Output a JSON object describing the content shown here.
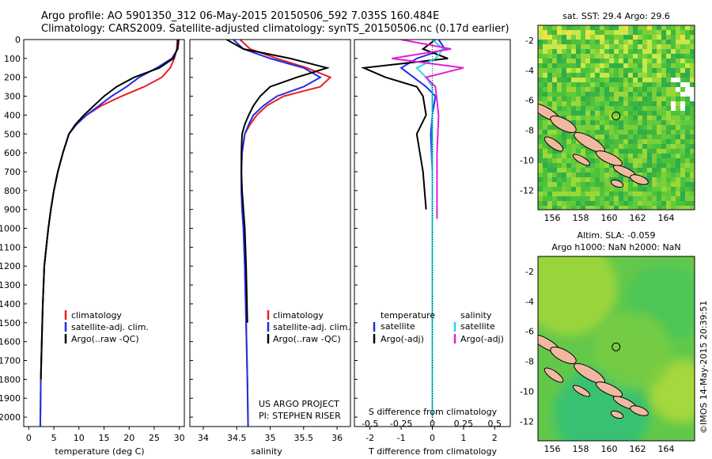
{
  "header": {
    "title_line1": "Argo profile: AO 5901350_312 06-May-2015 20150506_592 7.035S 160.484E",
    "title_line2": "Climatology: CARS2009. Satellite-adjusted climatology: synTS_20150506.nc (0.17d earlier)"
  },
  "colors": {
    "climatology": "#e8201f",
    "satellite": "#1f2fe0",
    "argo": "#000000",
    "salinity_satellite": "#22d8e6",
    "salinity_argo": "#e020d8"
  },
  "chart_data": [
    {
      "type": "line",
      "panel": "temperature",
      "xlabel": "temperature (deg C)",
      "xlim": [
        -1,
        31
      ],
      "xticks": [
        0,
        5,
        10,
        15,
        20,
        25,
        30
      ],
      "ylim": [
        2050,
        0
      ],
      "yticks": [
        0,
        100,
        200,
        300,
        400,
        500,
        600,
        700,
        800,
        900,
        1000,
        1100,
        1200,
        1300,
        1400,
        1500,
        1600,
        1700,
        1800,
        1900,
        2000
      ],
      "series": [
        {
          "name": "climatology",
          "x": [
            29.6,
            29.5,
            29.0,
            28.2,
            26.5,
            23.0,
            18.5,
            14.5,
            11.5,
            9.5,
            8.0,
            6.8,
            5.8,
            5.0,
            4.4,
            3.9,
            3.5,
            3.1,
            2.8,
            2.6,
            2.4,
            2.3
          ],
          "y": [
            0,
            50,
            100,
            150,
            200,
            250,
            300,
            350,
            400,
            450,
            500,
            600,
            700,
            800,
            900,
            1000,
            1100,
            1200,
            1400,
            1600,
            1800,
            2050
          ]
        },
        {
          "name": "satellite-adj. clim.",
          "x": [
            29.9,
            29.7,
            28.5,
            25.5,
            22.0,
            19.5,
            16.5,
            14.0,
            11.5,
            9.5,
            8.0,
            6.8,
            5.8,
            5.0,
            4.4,
            3.9,
            3.5,
            3.1,
            2.8,
            2.6,
            2.4,
            2.3
          ],
          "y": [
            0,
            50,
            100,
            150,
            200,
            250,
            300,
            350,
            400,
            450,
            500,
            600,
            700,
            800,
            900,
            1000,
            1100,
            1200,
            1400,
            1600,
            1800,
            2050
          ]
        },
        {
          "name": "Argo(..raw -QC)",
          "x": [
            29.8,
            29.6,
            28.8,
            26.0,
            21.0,
            17.5,
            15.0,
            13.0,
            11.0,
            9.3,
            8.0,
            6.8,
            5.8,
            5.0,
            4.4,
            3.9,
            3.5,
            3.1,
            2.8,
            2.6,
            2.4
          ],
          "y": [
            0,
            50,
            100,
            150,
            200,
            250,
            300,
            350,
            400,
            450,
            500,
            600,
            700,
            800,
            900,
            1000,
            1100,
            1200,
            1400,
            1600,
            1800
          ]
        }
      ],
      "legend": [
        "climatology",
        "satellite-adj. clim.",
        "Argo(..raw -QC)"
      ]
    },
    {
      "type": "line",
      "panel": "salinity",
      "xlabel": "salinity",
      "xlim": [
        33.8,
        36.2
      ],
      "xticks": [
        34,
        34.5,
        35,
        35.5,
        36
      ],
      "ylim": [
        2050,
        0
      ],
      "series": [
        {
          "name": "climatology",
          "x": [
            34.55,
            34.7,
            35.1,
            35.55,
            35.9,
            35.75,
            35.2,
            34.95,
            34.8,
            34.7,
            34.62,
            34.58,
            34.57,
            34.57,
            34.58,
            34.6,
            34.62,
            34.64,
            34.66,
            34.67
          ],
          "y": [
            0,
            50,
            100,
            150,
            200,
            250,
            300,
            350,
            400,
            450,
            500,
            600,
            700,
            800,
            900,
            1000,
            1200,
            1500,
            1800,
            2050
          ]
        },
        {
          "name": "satellite-adj. clim.",
          "x": [
            34.45,
            34.6,
            35.0,
            35.5,
            35.75,
            35.5,
            35.1,
            34.9,
            34.75,
            34.68,
            34.62,
            34.58,
            34.57,
            34.57,
            34.58,
            34.6,
            34.62,
            34.64,
            34.66,
            34.67
          ],
          "y": [
            0,
            50,
            100,
            150,
            200,
            250,
            300,
            350,
            400,
            450,
            500,
            600,
            700,
            800,
            900,
            1000,
            1200,
            1500,
            1800,
            2050
          ]
        },
        {
          "name": "Argo(..raw -QC)",
          "x": [
            34.35,
            34.6,
            35.3,
            35.85,
            35.4,
            35.0,
            34.85,
            34.75,
            34.68,
            34.62,
            34.58,
            34.57,
            34.57,
            34.58,
            34.6,
            34.62,
            34.64,
            34.66
          ],
          "y": [
            0,
            50,
            100,
            150,
            200,
            250,
            300,
            350,
            400,
            450,
            500,
            600,
            700,
            800,
            900,
            1000,
            1200,
            1500
          ]
        }
      ],
      "legend": [
        "climatology",
        "satellite-adj. clim.",
        "Argo(..raw -QC)"
      ],
      "annotations": [
        "US ARGO PROJECT",
        "PI: STEPHEN RISER"
      ]
    },
    {
      "type": "line",
      "panel": "difference",
      "xlabel": "T difference from climatology",
      "top_axis_label": "S difference from climatology",
      "xlim": [
        -2.5,
        2.5
      ],
      "xticks": [
        -2,
        -1,
        0,
        1,
        2
      ],
      "top_xticks": [
        -0.5,
        -0.25,
        0,
        0.25,
        0.5
      ],
      "ylim": [
        2050,
        0
      ],
      "series": [
        {
          "name": "temperature satellite",
          "x": [
            0.2,
            0.4,
            -0.5,
            -1.0,
            -0.6,
            -0.2,
            0.1,
            0.0,
            -0.05,
            0.0,
            0.0,
            0.0
          ],
          "y": [
            0,
            50,
            100,
            150,
            200,
            250,
            300,
            400,
            500,
            700,
            1000,
            2000
          ]
        },
        {
          "name": "temperature Argo(-adj)",
          "x": [
            0.1,
            -0.3,
            0.5,
            -2.2,
            -1.5,
            -0.5,
            -0.3,
            -0.2,
            -0.5,
            -0.3,
            -0.2
          ],
          "y": [
            0,
            50,
            100,
            150,
            200,
            250,
            300,
            400,
            500,
            700,
            900
          ]
        },
        {
          "name": "salinity satellite",
          "x": [
            0.0,
            0.35,
            0.1,
            -0.5,
            -0.2,
            0.0,
            0.0,
            0.0,
            0.0,
            0.0,
            0.0
          ],
          "y": [
            0,
            50,
            100,
            150,
            200,
            250,
            300,
            500,
            800,
            1200,
            2000
          ]
        },
        {
          "name": "salinity Argo(-adj)",
          "x": [
            -1.0,
            0.6,
            -1.3,
            1.0,
            -0.2,
            0.1,
            0.2,
            0.15,
            0.15,
            0.15
          ],
          "y": [
            0,
            50,
            100,
            150,
            200,
            250,
            400,
            600,
            800,
            950
          ]
        }
      ],
      "legend_temperature": {
        "title": "temperature",
        "items": [
          "satellite",
          "Argo(-adj)"
        ]
      },
      "legend_salinity": {
        "title": "salinity",
        "items": [
          "satellite",
          "Argo(-adj)"
        ]
      }
    },
    {
      "type": "heatmap",
      "panel": "sst_map",
      "title": "sat. SST: 29.4  Argo: 29.6",
      "xticks": [
        156,
        158,
        160,
        162,
        164
      ],
      "yticks": [
        -2,
        -4,
        -6,
        -8,
        -10,
        -12
      ],
      "marker": {
        "lon": 160.484,
        "lat": -7.035
      }
    },
    {
      "type": "heatmap",
      "panel": "sla_map",
      "title_line1": "Altim. SLA: -0.059",
      "title_line2": "Argo h1000: NaN h2000: NaN",
      "xticks": [
        156,
        158,
        160,
        162,
        164
      ],
      "yticks": [
        -2,
        -4,
        -6,
        -8,
        -10,
        -12
      ],
      "marker": {
        "lon": 160.484,
        "lat": -7.035
      }
    }
  ],
  "legend_labels": {
    "climatology": "climatology",
    "satellite": "satellite-adj. clim.",
    "argo": "Argo(..raw -QC)",
    "diff_temp_title": "temperature",
    "diff_sal_title": "salinity",
    "diff_sat": "satellite",
    "diff_argo": "Argo(-adj)"
  },
  "annotations": {
    "project": "US ARGO PROJECT",
    "pi": "PI: STEPHEN RISER",
    "watermark": "©IMOS 14-May-2015 20:39:51"
  }
}
